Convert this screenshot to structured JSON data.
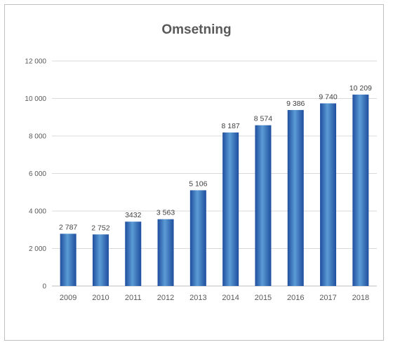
{
  "chart_data": {
    "type": "bar",
    "title": "Omsetning",
    "xlabel": "",
    "ylabel": "",
    "categories": [
      "2009",
      "2010",
      "2011",
      "2012",
      "2013",
      "2014",
      "2015",
      "2016",
      "2017",
      "2018"
    ],
    "values": [
      2787,
      2752,
      3432,
      3563,
      5106,
      8187,
      8574,
      9386,
      9740,
      10209
    ],
    "data_labels": [
      "2 787",
      "2 752",
      "3432",
      "3 563",
      "5 106",
      "8 187",
      "8 574",
      "9 386",
      "9 740",
      "10 209"
    ],
    "ylim": [
      0,
      12000
    ],
    "yticks": [
      0,
      2000,
      4000,
      6000,
      8000,
      10000,
      12000
    ],
    "ytick_labels": [
      "0",
      "2 000",
      "4 000",
      "6 000",
      "8 000",
      "10 000",
      "12 000"
    ],
    "grid": true,
    "legend": "none",
    "colors": {
      "bar_light": "#5b9bd5",
      "bar_dark": "#1f4e9e"
    }
  }
}
